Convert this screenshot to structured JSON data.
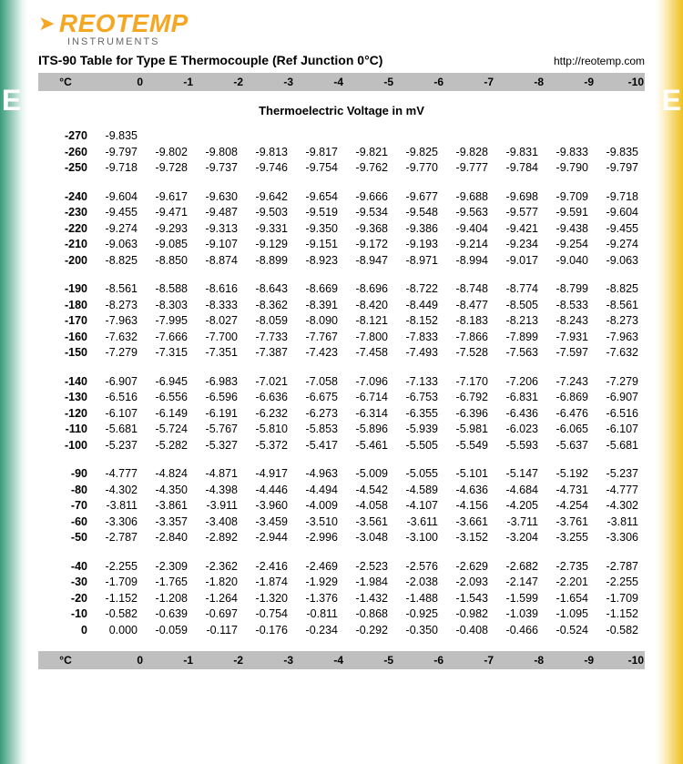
{
  "logo": {
    "brand": "REOTEMP",
    "sub": "INSTRUMENTS"
  },
  "title": "ITS-90 Table for Type E Thermocouple (Ref Junction 0°C)",
  "url": "http://reotemp.com",
  "side_letter": "E",
  "subtitle": "Thermoelectric Voltage in mV",
  "header": {
    "label": "°C",
    "cols": [
      "0",
      "-1",
      "-2",
      "-3",
      "-4",
      "-5",
      "-6",
      "-7",
      "-8",
      "-9",
      "-10"
    ]
  },
  "groups": [
    [
      {
        "t": "-270",
        "v": [
          "-9.835",
          "",
          "",
          "",
          "",
          "",
          "",
          "",
          "",
          "",
          ""
        ]
      },
      {
        "t": "-260",
        "v": [
          "-9.797",
          "-9.802",
          "-9.808",
          "-9.813",
          "-9.817",
          "-9.821",
          "-9.825",
          "-9.828",
          "-9.831",
          "-9.833",
          "-9.835"
        ]
      },
      {
        "t": "-250",
        "v": [
          "-9.718",
          "-9.728",
          "-9.737",
          "-9.746",
          "-9.754",
          "-9.762",
          "-9.770",
          "-9.777",
          "-9.784",
          "-9.790",
          "-9.797"
        ]
      }
    ],
    [
      {
        "t": "-240",
        "v": [
          "-9.604",
          "-9.617",
          "-9.630",
          "-9.642",
          "-9.654",
          "-9.666",
          "-9.677",
          "-9.688",
          "-9.698",
          "-9.709",
          "-9.718"
        ]
      },
      {
        "t": "-230",
        "v": [
          "-9.455",
          "-9.471",
          "-9.487",
          "-9.503",
          "-9.519",
          "-9.534",
          "-9.548",
          "-9.563",
          "-9.577",
          "-9.591",
          "-9.604"
        ]
      },
      {
        "t": "-220",
        "v": [
          "-9.274",
          "-9.293",
          "-9.313",
          "-9.331",
          "-9.350",
          "-9.368",
          "-9.386",
          "-9.404",
          "-9.421",
          "-9.438",
          "-9.455"
        ]
      },
      {
        "t": "-210",
        "v": [
          "-9.063",
          "-9.085",
          "-9.107",
          "-9.129",
          "-9.151",
          "-9.172",
          "-9.193",
          "-9.214",
          "-9.234",
          "-9.254",
          "-9.274"
        ]
      },
      {
        "t": "-200",
        "v": [
          "-8.825",
          "-8.850",
          "-8.874",
          "-8.899",
          "-8.923",
          "-8.947",
          "-8.971",
          "-8.994",
          "-9.017",
          "-9.040",
          "-9.063"
        ]
      }
    ],
    [
      {
        "t": "-190",
        "v": [
          "-8.561",
          "-8.588",
          "-8.616",
          "-8.643",
          "-8.669",
          "-8.696",
          "-8.722",
          "-8.748",
          "-8.774",
          "-8.799",
          "-8.825"
        ]
      },
      {
        "t": "-180",
        "v": [
          "-8.273",
          "-8.303",
          "-8.333",
          "-8.362",
          "-8.391",
          "-8.420",
          "-8.449",
          "-8.477",
          "-8.505",
          "-8.533",
          "-8.561"
        ]
      },
      {
        "t": "-170",
        "v": [
          "-7.963",
          "-7.995",
          "-8.027",
          "-8.059",
          "-8.090",
          "-8.121",
          "-8.152",
          "-8.183",
          "-8.213",
          "-8.243",
          "-8.273"
        ]
      },
      {
        "t": "-160",
        "v": [
          "-7.632",
          "-7.666",
          "-7.700",
          "-7.733",
          "-7.767",
          "-7.800",
          "-7.833",
          "-7.866",
          "-7.899",
          "-7.931",
          "-7.963"
        ]
      },
      {
        "t": "-150",
        "v": [
          "-7.279",
          "-7.315",
          "-7.351",
          "-7.387",
          "-7.423",
          "-7.458",
          "-7.493",
          "-7.528",
          "-7.563",
          "-7.597",
          "-7.632"
        ]
      }
    ],
    [
      {
        "t": "-140",
        "v": [
          "-6.907",
          "-6.945",
          "-6.983",
          "-7.021",
          "-7.058",
          "-7.096",
          "-7.133",
          "-7.170",
          "-7.206",
          "-7.243",
          "-7.279"
        ]
      },
      {
        "t": "-130",
        "v": [
          "-6.516",
          "-6.556",
          "-6.596",
          "-6.636",
          "-6.675",
          "-6.714",
          "-6.753",
          "-6.792",
          "-6.831",
          "-6.869",
          "-6.907"
        ]
      },
      {
        "t": "-120",
        "v": [
          "-6.107",
          "-6.149",
          "-6.191",
          "-6.232",
          "-6.273",
          "-6.314",
          "-6.355",
          "-6.396",
          "-6.436",
          "-6.476",
          "-6.516"
        ]
      },
      {
        "t": "-110",
        "v": [
          "-5.681",
          "-5.724",
          "-5.767",
          "-5.810",
          "-5.853",
          "-5.896",
          "-5.939",
          "-5.981",
          "-6.023",
          "-6.065",
          "-6.107"
        ]
      },
      {
        "t": "-100",
        "v": [
          "-5.237",
          "-5.282",
          "-5.327",
          "-5.372",
          "-5.417",
          "-5.461",
          "-5.505",
          "-5.549",
          "-5.593",
          "-5.637",
          "-5.681"
        ]
      }
    ],
    [
      {
        "t": "-90",
        "v": [
          "-4.777",
          "-4.824",
          "-4.871",
          "-4.917",
          "-4.963",
          "-5.009",
          "-5.055",
          "-5.101",
          "-5.147",
          "-5.192",
          "-5.237"
        ]
      },
      {
        "t": "-80",
        "v": [
          "-4.302",
          "-4.350",
          "-4.398",
          "-4.446",
          "-4.494",
          "-4.542",
          "-4.589",
          "-4.636",
          "-4.684",
          "-4.731",
          "-4.777"
        ]
      },
      {
        "t": "-70",
        "v": [
          "-3.811",
          "-3.861",
          "-3.911",
          "-3.960",
          "-4.009",
          "-4.058",
          "-4.107",
          "-4.156",
          "-4.205",
          "-4.254",
          "-4.302"
        ]
      },
      {
        "t": "-60",
        "v": [
          "-3.306",
          "-3.357",
          "-3.408",
          "-3.459",
          "-3.510",
          "-3.561",
          "-3.611",
          "-3.661",
          "-3.711",
          "-3.761",
          "-3.811"
        ]
      },
      {
        "t": "-50",
        "v": [
          "-2.787",
          "-2.840",
          "-2.892",
          "-2.944",
          "-2.996",
          "-3.048",
          "-3.100",
          "-3.152",
          "-3.204",
          "-3.255",
          "-3.306"
        ]
      }
    ],
    [
      {
        "t": "-40",
        "v": [
          "-2.255",
          "-2.309",
          "-2.362",
          "-2.416",
          "-2.469",
          "-2.523",
          "-2.576",
          "-2.629",
          "-2.682",
          "-2.735",
          "-2.787"
        ]
      },
      {
        "t": "-30",
        "v": [
          "-1.709",
          "-1.765",
          "-1.820",
          "-1.874",
          "-1.929",
          "-1.984",
          "-2.038",
          "-2.093",
          "-2.147",
          "-2.201",
          "-2.255"
        ]
      },
      {
        "t": "-20",
        "v": [
          "-1.152",
          "-1.208",
          "-1.264",
          "-1.320",
          "-1.376",
          "-1.432",
          "-1.488",
          "-1.543",
          "-1.599",
          "-1.654",
          "-1.709"
        ]
      },
      {
        "t": "-10",
        "v": [
          "-0.582",
          "-0.639",
          "-0.697",
          "-0.754",
          "-0.811",
          "-0.868",
          "-0.925",
          "-0.982",
          "-1.039",
          "-1.095",
          "-1.152"
        ]
      },
      {
        "t": "0",
        "v": [
          "0.000",
          "-0.059",
          "-0.117",
          "-0.176",
          "-0.234",
          "-0.292",
          "-0.350",
          "-0.408",
          "-0.466",
          "-0.524",
          "-0.582"
        ]
      }
    ]
  ]
}
